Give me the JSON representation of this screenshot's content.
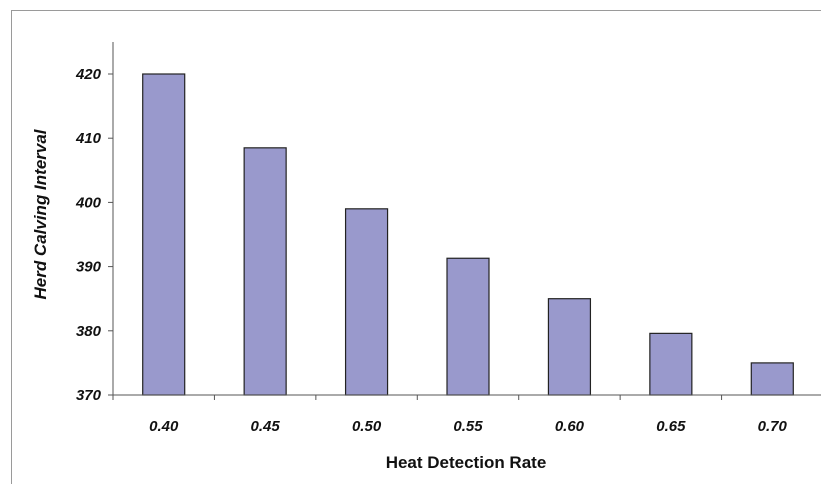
{
  "chart_data": {
    "type": "bar",
    "title": "",
    "xlabel": "Heat Detection Rate",
    "ylabel": "Herd Calving Interval",
    "categories": [
      "0.40",
      "0.45",
      "0.50",
      "0.55",
      "0.60",
      "0.65",
      "0.70"
    ],
    "values": [
      420,
      408.5,
      399,
      391.3,
      385,
      379.6,
      375
    ],
    "ylim": [
      370,
      420
    ],
    "yticks": [
      "370",
      "380",
      "390",
      "400",
      "410",
      "420"
    ],
    "grid": false,
    "legend": "none",
    "bar_color": "#9999cc",
    "bar_edge_color": "#222222"
  }
}
